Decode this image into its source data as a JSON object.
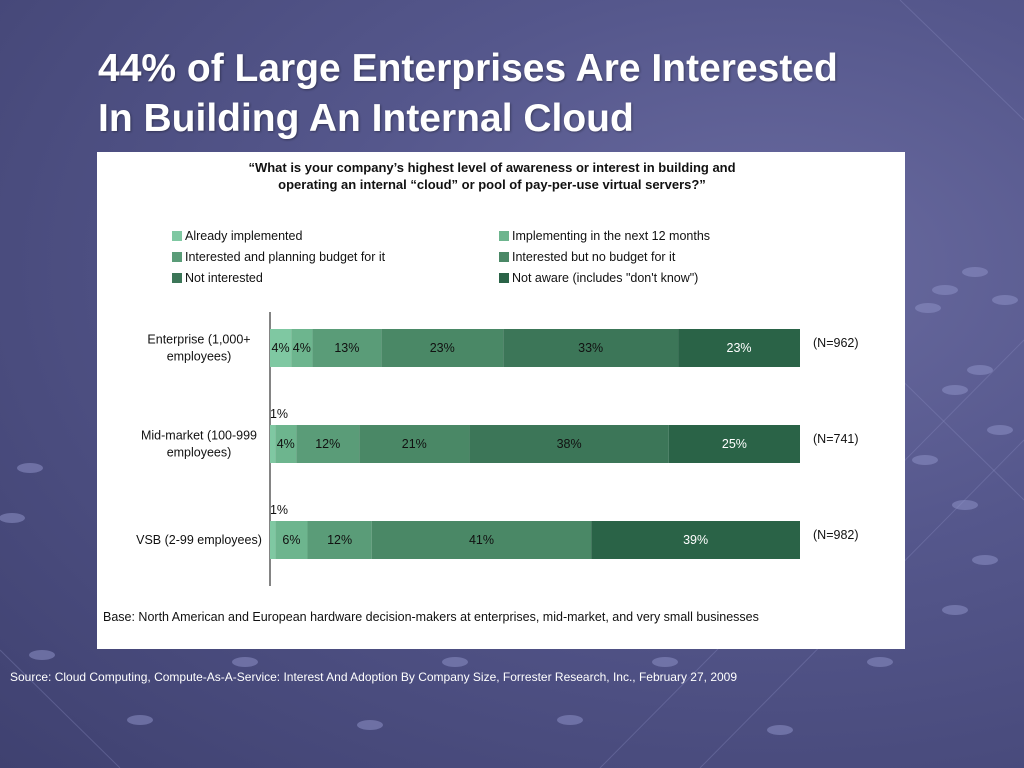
{
  "title_line1": "44% of Large Enterprises Are Interested",
  "title_line2": "In Building An Internal Cloud",
  "question_line1": "“What is your company’s highest level of awareness or interest in building and",
  "question_line2": "operating an internal “cloud” or pool of pay-per-use virtual servers?”",
  "base_note": "Base: North American and European hardware decision-makers at enterprises, mid-market, and very small businesses",
  "source": "Source: Cloud Computing, Compute-As-A-Service: Interest And Adoption By Company Size, Forrester Research, Inc., February 27, 2009",
  "chart_data": {
    "type": "bar",
    "orientation": "horizontal",
    "stacked": true,
    "legend_position": "top",
    "categories": [
      "Enterprise (1,000+ employees)",
      "Mid-market (100-999 employees)",
      "VSB (2-99 employees)"
    ],
    "category_lines": [
      [
        "Enterprise (1,000+",
        "employees)"
      ],
      [
        "Mid-market (100-999",
        "employees)"
      ],
      [
        "VSB (2-99 employees)"
      ]
    ],
    "sample_sizes": [
      "(N=962)",
      "(N=741)",
      "(N=982)"
    ],
    "series": [
      {
        "name": "Already implemented",
        "values": [
          4,
          1,
          1
        ],
        "color": "#7fc8a2"
      },
      {
        "name": "Implementing in the next 12 months",
        "values": [
          4,
          4,
          6
        ],
        "color": "#6db58e"
      },
      {
        "name": "Interested and planning budget for it",
        "values": [
          13,
          12,
          12
        ],
        "color": "#5a9c78"
      },
      {
        "name": "Interested but no budget for it",
        "values": [
          23,
          21,
          41
        ],
        "color": "#4a8866"
      },
      {
        "name": "Not interested",
        "values": [
          33,
          38,
          0
        ],
        "color": "#3c7658"
      },
      {
        "name": "Not aware (includes \"don't know\")",
        "values": [
          23,
          25,
          39
        ],
        "color": "#2a6347"
      }
    ],
    "labels": [
      [
        "4%",
        "4%",
        "13%",
        "23%",
        "33%",
        "23%"
      ],
      [
        "1%",
        "4%",
        "12%",
        "21%",
        "38%",
        "25%"
      ],
      [
        "1%",
        "6%",
        "12%",
        "41%",
        "",
        "39%"
      ]
    ],
    "xlim": [
      0,
      100
    ]
  }
}
